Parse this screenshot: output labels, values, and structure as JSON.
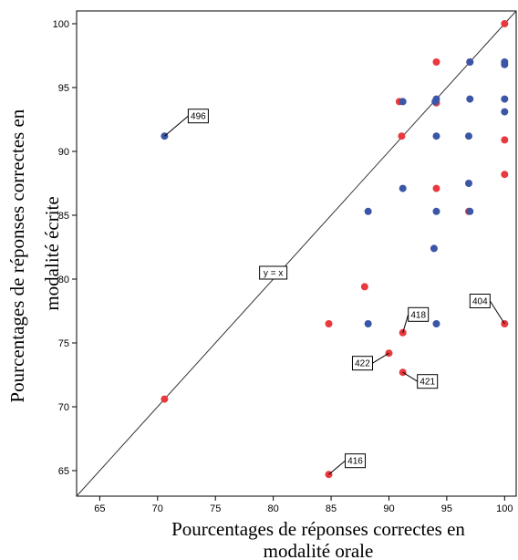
{
  "chart_data": {
    "type": "scatter",
    "xlabel_lines": [
      "Pourcentages de réponses correctes en",
      "modalité orale"
    ],
    "ylabel_lines": [
      "Pourcentages de réponses correctes en",
      "modalité écrite"
    ],
    "xlim": [
      63,
      101
    ],
    "ylim": [
      63,
      101
    ],
    "x_ticks": [
      65,
      70,
      75,
      80,
      85,
      90,
      95,
      100
    ],
    "y_ticks": [
      65,
      70,
      75,
      80,
      85,
      90,
      95,
      100
    ],
    "grid": false,
    "reference_line": {
      "label": "y = x",
      "at": [
        80,
        80.5
      ]
    },
    "series": [
      {
        "color": "#e8393f",
        "points": [
          [
            100,
            100
          ],
          [
            97,
            97
          ],
          [
            94.1,
            97
          ],
          [
            90.9,
            93.9
          ],
          [
            94.1,
            93.8
          ],
          [
            91.1,
            91.2
          ],
          [
            100,
            90.9
          ],
          [
            100,
            88.2
          ],
          [
            94.1,
            87.1
          ],
          [
            96.9,
            85.3
          ],
          [
            87.9,
            79.4
          ],
          [
            84.8,
            76.5
          ],
          [
            100,
            76.5
          ],
          [
            91.2,
            75.8
          ],
          [
            90,
            74.2
          ],
          [
            91.2,
            72.7
          ],
          [
            70.6,
            70.6
          ],
          [
            84.8,
            64.7
          ]
        ]
      },
      {
        "color": "#3b56a6",
        "points": [
          [
            100,
            97
          ],
          [
            100,
            96.8
          ],
          [
            97,
            97
          ],
          [
            94.1,
            94.1
          ],
          [
            94,
            93.9
          ],
          [
            91.2,
            93.9
          ],
          [
            97,
            94.1
          ],
          [
            100,
            94.1
          ],
          [
            100,
            93.1
          ],
          [
            70.6,
            91.2
          ],
          [
            94.1,
            91.2
          ],
          [
            96.9,
            91.2
          ],
          [
            91.2,
            87.1
          ],
          [
            96.9,
            87.5
          ],
          [
            88.2,
            85.3
          ],
          [
            94.1,
            85.3
          ],
          [
            97,
            85.3
          ],
          [
            93.9,
            82.4
          ],
          [
            88.2,
            76.5
          ],
          [
            94.1,
            76.5
          ]
        ]
      }
    ],
    "annotations": [
      {
        "text": "496",
        "x": 70.6,
        "y": 91.2
      },
      {
        "text": "418",
        "x": 91.2,
        "y": 75.8
      },
      {
        "text": "404",
        "x": 100,
        "y": 76.5
      },
      {
        "text": "422",
        "x": 90,
        "y": 74.2
      },
      {
        "text": "421",
        "x": 91.2,
        "y": 72.7
      },
      {
        "text": "416",
        "x": 84.8,
        "y": 64.7
      }
    ]
  }
}
